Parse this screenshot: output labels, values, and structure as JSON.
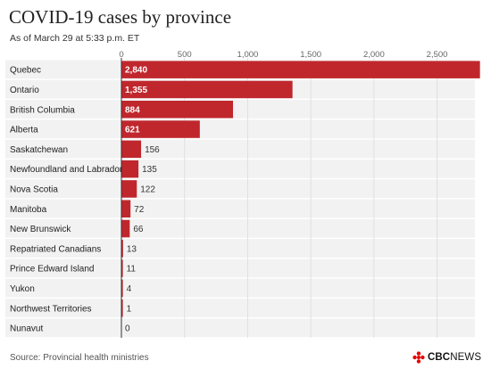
{
  "header": {
    "title": "COVID-19 cases by province",
    "subtitle": "As of March 29 at 5:33 p.m. ET"
  },
  "footer": {
    "source": "Source: Provincial health ministries",
    "logo_primary": "CBC",
    "logo_secondary": "NEWS"
  },
  "colors": {
    "bar": "#c0272d",
    "row_band": "#f2f2f2",
    "gridline": "#e0e0e0",
    "axis": "#333333"
  },
  "chart_data": {
    "type": "bar",
    "orientation": "horizontal",
    "categories": [
      "Quebec",
      "Ontario",
      "British Columbia",
      "Alberta",
      "Saskatchewan",
      "Newfoundland and Labrador",
      "Nova Scotia",
      "Manitoba",
      "New Brunswick",
      "Repatriated Canadians",
      "Prince Edward Island",
      "Yukon",
      "Northwest Territories",
      "Nunavut"
    ],
    "values": [
      2840,
      1355,
      884,
      621,
      156,
      135,
      122,
      72,
      66,
      13,
      11,
      4,
      1,
      0
    ],
    "value_labels": [
      "2,840",
      "1,355",
      "884",
      "621",
      "156",
      "135",
      "122",
      "72",
      "66",
      "13",
      "11",
      "4",
      "1",
      "0"
    ],
    "x_ticks": [
      0,
      500,
      1000,
      1500,
      2000,
      2500
    ],
    "x_tick_labels": [
      "0",
      "500",
      "1,000",
      "1,500",
      "2,000",
      "2,500"
    ],
    "xlim": [
      0,
      2800
    ],
    "grid": true,
    "legend": "none"
  }
}
